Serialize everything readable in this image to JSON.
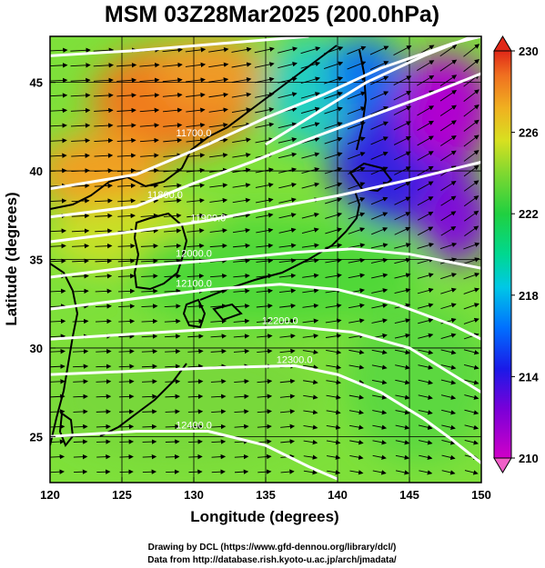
{
  "title": "MSM 03Z28Mar2025 (200.0hPa)",
  "credits": {
    "line1": "Drawing by DCL (https://www.gfd-dennou.org/library/dcl/)",
    "line2": "Data from http://database.rish.kyoto-u.ac.jp/arch/jmadata/"
  },
  "chart_data": {
    "type": "heatmap",
    "title": "MSM 03Z28Mar2025 (200.0hPa)",
    "xlabel": "Longitude (degrees)",
    "ylabel": "Latitude  (degrees)",
    "xlim": [
      120,
      150
    ],
    "ylim": [
      22.4,
      47.6
    ],
    "xticks": [
      120,
      125,
      130,
      135,
      140,
      145,
      150
    ],
    "yticks": [
      25,
      30,
      35,
      40,
      45
    ],
    "grid": true,
    "colorbar": {
      "min": 210,
      "max": 230,
      "labels": [
        210,
        214,
        218,
        222,
        226,
        230
      ],
      "colors": [
        "#d000c8",
        "#7a00d8",
        "#1a1ae8",
        "#0070ff",
        "#00c8e6",
        "#00d890",
        "#20d040",
        "#80d830",
        "#d8e020",
        "#f0b020",
        "#f07020",
        "#e02818"
      ]
    },
    "contours": [
      {
        "label": "11700.0",
        "level": 11700
      },
      {
        "label": "11800.0",
        "level": 11800
      },
      {
        "label": "11900.0",
        "level": 11900
      },
      {
        "label": "12000.0",
        "level": 12000
      },
      {
        "label": "12100.0",
        "level": 12100
      },
      {
        "label": "12200.0",
        "level": 12200
      },
      {
        "label": "12300.0",
        "level": 12300
      },
      {
        "label": "12400.0",
        "level": 12400
      }
    ],
    "field_description_regions": [
      {
        "lon": 128,
        "lat": 44,
        "value": 228
      },
      {
        "lon": 122,
        "lat": 39,
        "value": 227
      },
      {
        "lon": 145,
        "lat": 42,
        "value": 212
      },
      {
        "lon": 148,
        "lat": 44,
        "value": 210
      },
      {
        "lon": 140,
        "lat": 44,
        "value": 216
      },
      {
        "lon": 135,
        "lat": 40,
        "value": 221
      },
      {
        "lon": 135,
        "lat": 30,
        "value": 222
      },
      {
        "lon": 125,
        "lat": 26,
        "value": 223
      }
    ]
  }
}
